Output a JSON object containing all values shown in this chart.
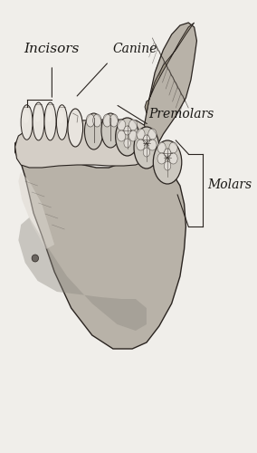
{
  "background_color": "#f0eeea",
  "labels": {
    "incisors": "Incisors",
    "canine": "Canine",
    "premolars": "Premolars",
    "molars": "Molars"
  },
  "label_fontsize": 10,
  "label_fontsize_incisors": 11,
  "bone_light": "#d4cec6",
  "bone_mid": "#b8b2a8",
  "bone_dark": "#8c8880",
  "tooth_light": "#e8e4de",
  "tooth_mid": "#ccc8c0",
  "line_col": "#2a2420",
  "spongy_col": "#a09888",
  "shadow_col": "#6a6560"
}
